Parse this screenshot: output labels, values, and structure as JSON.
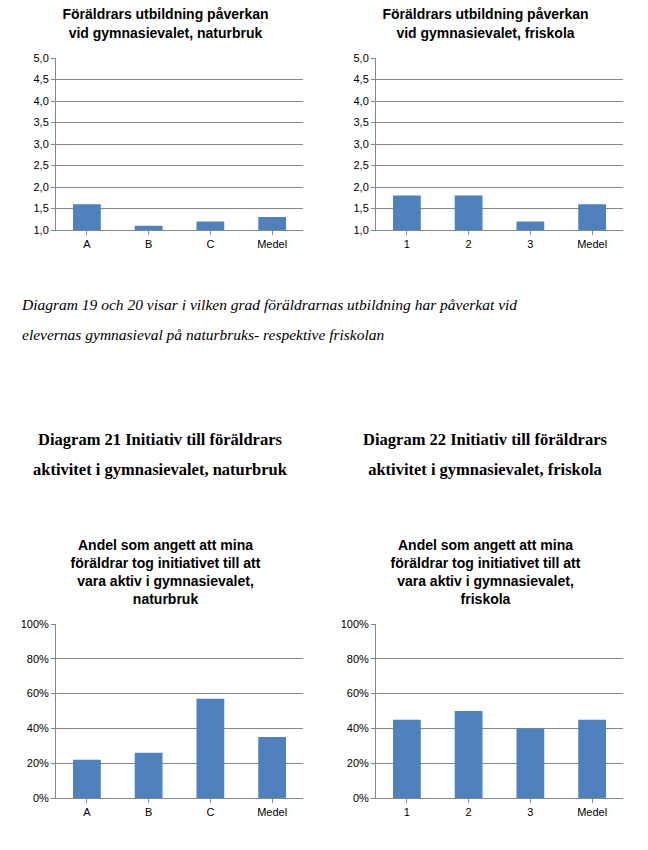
{
  "chart_data": [
    {
      "type": "bar",
      "title": "Föräldrars utbildning påverkan\nvid gymnasievalet, naturbruk",
      "categories": [
        "A",
        "B",
        "C",
        "Medel"
      ],
      "values": [
        1.6,
        1.1,
        1.2,
        1.3
      ],
      "color": "#4f81bd",
      "ylim": [
        1,
        5
      ],
      "yticks": [
        {
          "value": 1,
          "label": "1,0"
        },
        {
          "value": 1.5,
          "label": "1,5"
        },
        {
          "value": 2,
          "label": "2,0"
        },
        {
          "value": 2.5,
          "label": "2,5"
        },
        {
          "value": 3,
          "label": "3,0"
        },
        {
          "value": 3.5,
          "label": "3,5"
        },
        {
          "value": 4,
          "label": "4,0"
        },
        {
          "value": 4.5,
          "label": "4,5"
        },
        {
          "value": 5,
          "label": "5,0"
        }
      ],
      "grid": true
    },
    {
      "type": "bar",
      "title": "Föräldrars utbildning påverkan\nvid gymnasievalet, friskola",
      "categories": [
        "1",
        "2",
        "3",
        "Medel"
      ],
      "values": [
        1.8,
        1.8,
        1.2,
        1.6
      ],
      "color": "#4f81bd",
      "ylim": [
        1,
        5
      ],
      "yticks": [
        {
          "value": 1,
          "label": "1,0"
        },
        {
          "value": 1.5,
          "label": "1,5"
        },
        {
          "value": 2,
          "label": "2,0"
        },
        {
          "value": 2.5,
          "label": "2,5"
        },
        {
          "value": 3,
          "label": "3,0"
        },
        {
          "value": 3.5,
          "label": "3,5"
        },
        {
          "value": 4,
          "label": "4,0"
        },
        {
          "value": 4.5,
          "label": "4,5"
        },
        {
          "value": 5,
          "label": "5,0"
        }
      ],
      "grid": true
    },
    {
      "type": "bar",
      "title": "Andel som angett att mina\nföräldrar tog initiativet till att\nvara aktiv i gymnasievalet,\nnaturbruk",
      "categories": [
        "A",
        "B",
        "C",
        "Medel"
      ],
      "values": [
        22,
        26,
        57,
        35
      ],
      "color": "#4f81bd",
      "ylim": [
        0,
        100
      ],
      "yticks": [
        {
          "value": 0,
          "label": "0%"
        },
        {
          "value": 20,
          "label": "20%"
        },
        {
          "value": 40,
          "label": "40%"
        },
        {
          "value": 60,
          "label": "60%"
        },
        {
          "value": 80,
          "label": "80%"
        },
        {
          "value": 100,
          "label": "100%"
        }
      ],
      "grid": true
    },
    {
      "type": "bar",
      "title": "Andel som angett att mina\nföräldrar tog initiativet till att\nvara aktiv i gymnasievalet,\nfriskola",
      "categories": [
        "1",
        "2",
        "3",
        "Medel"
      ],
      "values": [
        45,
        50,
        40,
        45
      ],
      "color": "#4f81bd",
      "ylim": [
        0,
        100
      ],
      "yticks": [
        {
          "value": 0,
          "label": "0%"
        },
        {
          "value": 20,
          "label": "20%"
        },
        {
          "value": 40,
          "label": "40%"
        },
        {
          "value": 60,
          "label": "60%"
        },
        {
          "value": 80,
          "label": "80%"
        },
        {
          "value": 100,
          "label": "100%"
        }
      ],
      "grid": true
    }
  ],
  "texts": {
    "caption_19_20": "Diagram 19 och 20 visar i vilken grad föräldrarnas utbildning har påverkat vid\nelevernas gymnasieval på naturbruks- respektive friskolan",
    "heading_21": "Diagram 21 Initiativ till föräldrars\naktivitet i gymnasievalet, naturbruk",
    "heading_22": "Diagram 22 Initiativ till föräldrars\naktivitet i gymnasievalet, friskola"
  }
}
